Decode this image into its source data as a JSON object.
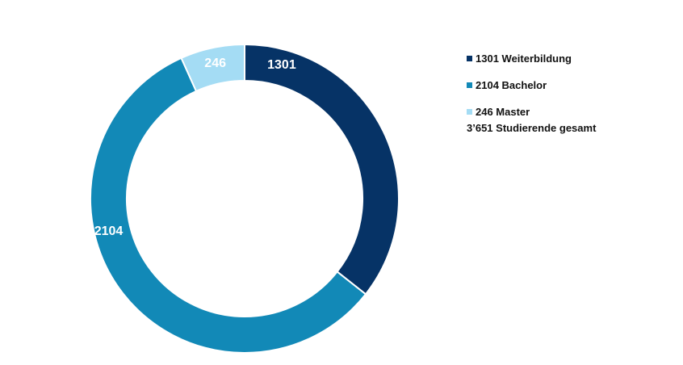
{
  "chart_data": {
    "type": "pie",
    "donut": true,
    "categories": [
      "Weiterbildung",
      "Bachelor",
      "Master"
    ],
    "values": [
      1301,
      2104,
      246
    ],
    "colors": [
      "#063366",
      "#1289b7",
      "#a4dcf4"
    ],
    "slice_labels": [
      "1301",
      "2104",
      "246"
    ],
    "legend": {
      "placement": "right",
      "items": [
        "1301 Weiterbildung",
        "2104 Bachelor",
        "246 Master"
      ],
      "total_text": "3’651 Studierende gesamt"
    }
  }
}
